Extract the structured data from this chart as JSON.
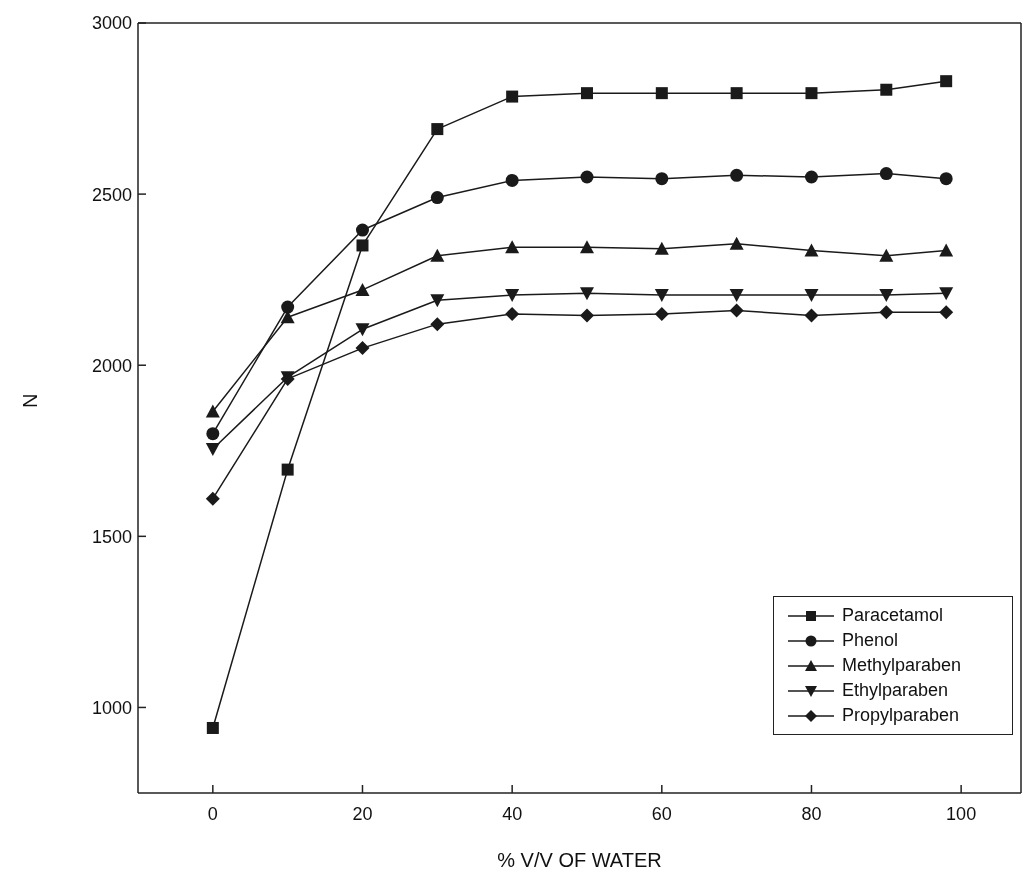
{
  "chart_data": {
    "type": "line",
    "xlabel": "% V/V OF WATER",
    "ylabel": "N",
    "x": [
      0,
      10,
      20,
      30,
      40,
      50,
      60,
      70,
      80,
      90,
      98
    ],
    "series": [
      {
        "name": "Paracetamol",
        "color": "#1a1a1a",
        "marker": "square",
        "values": [
          940,
          1695,
          2350,
          2690,
          2785,
          2795,
          2795,
          2795,
          2795,
          2805,
          2830
        ]
      },
      {
        "name": "Phenol",
        "color": "#1a1a1a",
        "marker": "circle",
        "values": [
          1800,
          2170,
          2395,
          2490,
          2540,
          2550,
          2545,
          2555,
          2550,
          2560,
          2545
        ]
      },
      {
        "name": "Methylparaben",
        "color": "#1a1a1a",
        "marker": "triangle",
        "values": [
          1865,
          2140,
          2220,
          2320,
          2345,
          2345,
          2340,
          2355,
          2335,
          2320,
          2335
        ]
      },
      {
        "name": "Ethylparaben",
        "color": "#1a1a1a",
        "marker": "triangle-down",
        "values": [
          1755,
          1965,
          2105,
          2190,
          2205,
          2210,
          2205,
          2205,
          2205,
          2205,
          2210
        ]
      },
      {
        "name": "Propylparaben",
        "color": "#1a1a1a",
        "marker": "diamond",
        "values": [
          1610,
          1960,
          2050,
          2120,
          2150,
          2145,
          2150,
          2160,
          2145,
          2155,
          2155
        ]
      }
    ],
    "xlim": [
      -10,
      108
    ],
    "xticks": [
      0,
      20,
      40,
      60,
      80,
      100
    ],
    "ylim": [
      750,
      3000
    ],
    "yticks": [
      1000,
      1500,
      2000,
      2500,
      3000
    ],
    "grid": false,
    "legend": "bottom right",
    "line_style": "solid"
  }
}
